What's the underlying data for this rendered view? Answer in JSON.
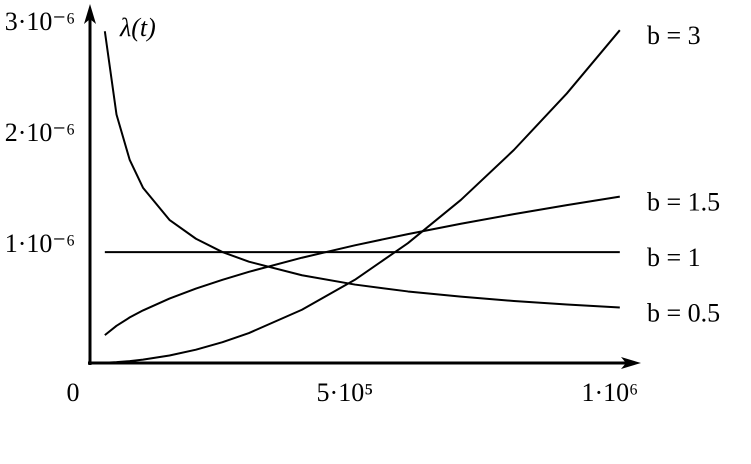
{
  "chart_data": {
    "type": "line",
    "ylabel": "λ(t)",
    "x": [
      28000,
      50000,
      75000,
      100000,
      150000,
      200000,
      250000,
      300000,
      400000,
      500000,
      600000,
      700000,
      800000,
      900000,
      1000000
    ],
    "series": [
      {
        "name": "b = 3",
        "color": "#000000",
        "values": [
          2.35e-09,
          7.5e-09,
          1.69e-08,
          3e-08,
          6.75e-08,
          1.2e-07,
          1.875e-07,
          2.7e-07,
          4.8e-07,
          7.5e-07,
          1.08e-06,
          1.47e-06,
          1.92e-06,
          2.43e-06,
          3e-06
        ]
      },
      {
        "name": "b = 1.5",
        "color": "#000000",
        "values": [
          2.51e-07,
          3.35e-07,
          4.11e-07,
          4.74e-07,
          5.81e-07,
          6.71e-07,
          7.5e-07,
          8.22e-07,
          9.49e-07,
          1.061e-06,
          1.162e-06,
          1.255e-06,
          1.342e-06,
          1.423e-06,
          1.5e-06
        ]
      },
      {
        "name": "b = 1",
        "color": "#000000",
        "values": [
          1e-06,
          1e-06,
          1e-06,
          1e-06,
          1e-06,
          1e-06,
          1e-06,
          1e-06,
          1e-06,
          1e-06,
          1e-06,
          1e-06,
          1e-06,
          1e-06,
          1e-06
        ]
      },
      {
        "name": "b = 0.5",
        "color": "#000000",
        "values": [
          2.99e-06,
          2.24e-06,
          1.83e-06,
          1.58e-06,
          1.29e-06,
          1.12e-06,
          1e-06,
          9.13e-07,
          7.91e-07,
          7.07e-07,
          6.45e-07,
          5.98e-07,
          5.59e-07,
          5.27e-07,
          5e-07
        ]
      }
    ],
    "xlim": [
      0,
      1040000
    ],
    "ylim": [
      0,
      3.2e-06
    ],
    "xticks": [
      0,
      {
        "value": 500000,
        "label": "5·10⁵"
      },
      {
        "value": 1000000,
        "label": "1·10⁶"
      }
    ],
    "yticks": [
      {
        "value": 1e-06,
        "label": "1·10⁻⁶"
      },
      {
        "value": 2e-06,
        "label": "2·10⁻⁶"
      },
      {
        "value": 3e-06,
        "label": "3·10⁻⁶"
      }
    ]
  }
}
